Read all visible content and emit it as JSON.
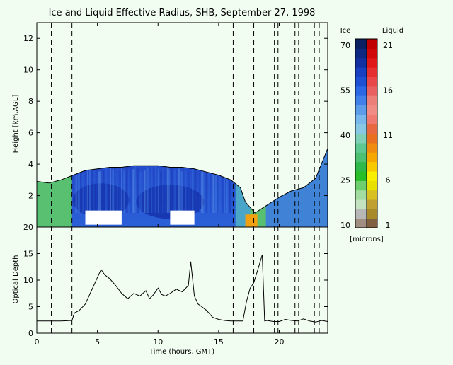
{
  "chart_data": [
    {
      "type": "heatmap",
      "title": "Ice and Liquid Effective Radius, SHB, September 27, 1998",
      "ylabel": "Height [km,AGL]",
      "xlim": [
        0,
        24
      ],
      "ylim": [
        0,
        13
      ],
      "yticks": [
        2,
        4,
        6,
        8,
        10,
        12
      ],
      "vertical_event_lines_hours": [
        1.2,
        2.9,
        16.2,
        17.9,
        19.6,
        19.9,
        21.3,
        21.6,
        22.9,
        23.3
      ],
      "cloud_top_km": {
        "x": [
          0,
          1,
          2,
          3,
          4,
          5,
          6,
          7,
          8,
          9,
          10,
          11,
          12,
          13,
          14,
          15,
          16,
          16.8,
          17.2,
          18,
          19,
          20,
          21,
          22,
          23,
          24
        ],
        "y": [
          2.9,
          2.8,
          3.0,
          3.3,
          3.6,
          3.7,
          3.8,
          3.8,
          3.9,
          3.9,
          3.9,
          3.8,
          3.8,
          3.7,
          3.5,
          3.3,
          3.0,
          2.5,
          1.6,
          0.9,
          1.4,
          1.9,
          2.3,
          2.5,
          3.1,
          5.0
        ]
      },
      "blank_gaps": [
        {
          "x": [
            4.0,
            7.0
          ],
          "y": [
            0.15,
            1.05
          ]
        },
        {
          "x": [
            11.0,
            13.0
          ],
          "y": [
            0.15,
            1.05
          ]
        }
      ],
      "grid": false
    },
    {
      "type": "line",
      "xlabel": "Time (hours, GMT)",
      "ylabel": "Optical Depth",
      "xlim": [
        0,
        24
      ],
      "ylim": [
        0,
        20
      ],
      "xticks": [
        0,
        5,
        10,
        15,
        20
      ],
      "yticks": [
        0,
        5,
        10,
        15,
        20
      ],
      "grid": false,
      "series": [
        {
          "x": [
            0,
            1,
            2,
            2.9,
            3.1,
            3.5,
            4.0,
            4.5,
            5.0,
            5.3,
            5.6,
            6.0,
            6.5,
            7.0,
            7.5,
            8.0,
            8.5,
            9.0,
            9.3,
            9.6,
            10.0,
            10.3,
            10.6,
            11.0,
            11.5,
            12.0,
            12.5,
            12.7,
            13.0,
            13.3,
            13.6,
            14.0,
            14.5,
            15.0,
            15.5,
            16.0,
            16.5,
            17.0,
            17.3,
            17.6,
            17.9,
            18.1,
            18.3,
            18.5,
            18.6,
            18.8,
            19.0,
            19.5,
            20.0,
            20.5,
            21.0,
            21.5,
            22.0,
            22.5,
            23.0,
            23.5,
            24.0
          ],
          "values": [
            2.3,
            2.3,
            2.3,
            2.4,
            3.8,
            4.3,
            5.5,
            8.0,
            10.5,
            12.0,
            11.0,
            10.3,
            9.0,
            7.5,
            6.5,
            7.5,
            7.0,
            8.0,
            6.5,
            7.2,
            8.5,
            7.3,
            7.0,
            7.5,
            8.3,
            7.8,
            9.0,
            13.5,
            7.0,
            5.5,
            5.0,
            4.3,
            3.0,
            2.6,
            2.4,
            2.3,
            2.3,
            2.3,
            6.0,
            8.5,
            9.5,
            11.0,
            12.5,
            14.0,
            14.8,
            2.3,
            2.4,
            2.2,
            2.2,
            2.6,
            2.4,
            2.3,
            2.7,
            2.3,
            2.1,
            2.4,
            2.2
          ]
        }
      ]
    }
  ],
  "colorbar": {
    "left_label": "Ice",
    "right_label": "Liquid",
    "left_ticks": [
      "70",
      "55",
      "40",
      "25",
      "10"
    ],
    "right_ticks": [
      "21",
      "16",
      "11",
      "6",
      "1"
    ],
    "unit_label": "[microns]",
    "ice_colors": [
      "#a08f80",
      "#b7b7b7",
      "#c4e2c0",
      "#a3dca0",
      "#6ece6e",
      "#27be27",
      "#2fb84a",
      "#4cc070",
      "#5fc890",
      "#80d0b8",
      "#88c8e4",
      "#78b8ec",
      "#5c9ce8",
      "#4080e8",
      "#2c68e4",
      "#1e50d4",
      "#1840c0",
      "#1230a0",
      "#0c2880",
      "#0a2060"
    ],
    "liquid_colors": [
      "#806040",
      "#a88a28",
      "#c0a030",
      "#d8c020",
      "#e8e000",
      "#f8f000",
      "#f8c800",
      "#f4a800",
      "#f08c10",
      "#e87020",
      "#e86840",
      "#f07a70",
      "#f08c84",
      "#ec8078",
      "#e86060",
      "#e84848",
      "#e63030",
      "#e01818",
      "#d00808",
      "#c00000"
    ]
  }
}
